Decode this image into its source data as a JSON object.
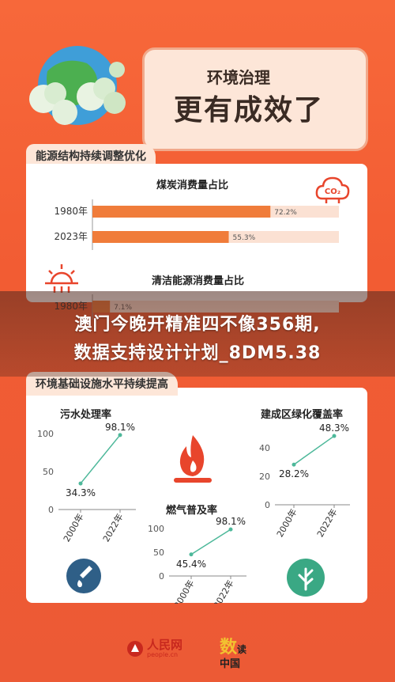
{
  "header": {
    "title_sub": "环境治理",
    "title_main": "更有成效了"
  },
  "section1": {
    "tab": "能源结构持续调整优化",
    "chart1_title": "煤炭消费量占比",
    "chart2_title": "清洁能源消费量占比",
    "co2_icon_text": "CO₂"
  },
  "section2": {
    "tab": "环境基础设施水平持续提高",
    "sewage_title": "污水处理率",
    "gas_title": "燃气普及率",
    "green_title": "建成区绿化覆盖率"
  },
  "overlay": {
    "line1": "澳门今晚开精准四不像356期,",
    "line2": "数据支持设计计划_8DM5.38"
  },
  "footer": {
    "logo1": "人民网",
    "logo1_sub": "people.cn",
    "logo2_a": "数",
    "logo2_b": "读",
    "logo2_c": "中国"
  },
  "colors": {
    "accent": "#f07c3a",
    "bar_bg": "#fbe1d3",
    "line": "#4db89a",
    "icon_red": "#e8452c",
    "icon_blue": "#2f5f87",
    "icon_green": "#3aa884"
  },
  "chart_data": [
    {
      "type": "bar",
      "orientation": "horizontal",
      "title": "煤炭消费量占比",
      "categories": [
        "1980年",
        "2023年"
      ],
      "values": [
        72.2,
        55.3
      ],
      "labels": [
        "72.2%",
        "55.3%"
      ],
      "xlim": [
        0,
        100
      ]
    },
    {
      "type": "bar",
      "orientation": "horizontal",
      "title": "清洁能源消费量占比",
      "categories": [
        "1980年"
      ],
      "values": [
        7.1
      ],
      "labels": [
        "7.1%"
      ],
      "xlim": [
        0,
        100
      ]
    },
    {
      "type": "line",
      "title": "污水处理率",
      "x": [
        "2000年",
        "2022年"
      ],
      "values": [
        34.3,
        98.1
      ],
      "labels": [
        "34.3%",
        "98.1%"
      ],
      "yticks": [
        "100",
        "50",
        "0"
      ],
      "ylim": [
        0,
        100
      ]
    },
    {
      "type": "line",
      "title": "燃气普及率",
      "x": [
        "2000年",
        "2022年"
      ],
      "values": [
        45.4,
        98.1
      ],
      "labels": [
        "45.4%",
        "98.1%"
      ],
      "yticks": [
        "100",
        "50",
        "0"
      ],
      "ylim": [
        0,
        100
      ]
    },
    {
      "type": "line",
      "title": "建成区绿化覆盖率",
      "x": [
        "2000年",
        "2022年"
      ],
      "values": [
        28.2,
        48.3
      ],
      "labels": [
        "28.2%",
        "48.3%"
      ],
      "yticks": [
        "40",
        "20",
        "0"
      ],
      "ylim": [
        0,
        50
      ]
    }
  ]
}
